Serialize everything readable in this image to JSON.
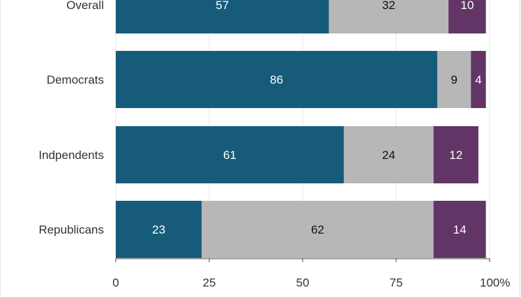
{
  "chart_data": {
    "type": "bar",
    "orientation": "horizontal",
    "stacked": true,
    "categories": [
      "Overall",
      "Democrats",
      "Indpendents",
      "Republicans"
    ],
    "series": [
      {
        "values": [
          57,
          86,
          61,
          23
        ],
        "color": "#175b7b",
        "label_color": "#ffffff"
      },
      {
        "values": [
          32,
          9,
          24,
          62
        ],
        "color": "#b7b7b7",
        "label_color": "#111111"
      },
      {
        "values": [
          10,
          4,
          12,
          14
        ],
        "color": "#623566",
        "label_color": "#ffffff"
      }
    ],
    "xlim": [
      0,
      100
    ],
    "xticks": [
      "0",
      "25",
      "50",
      "75",
      "100%"
    ],
    "grid": true,
    "title": "",
    "xlabel": "",
    "ylabel": ""
  }
}
